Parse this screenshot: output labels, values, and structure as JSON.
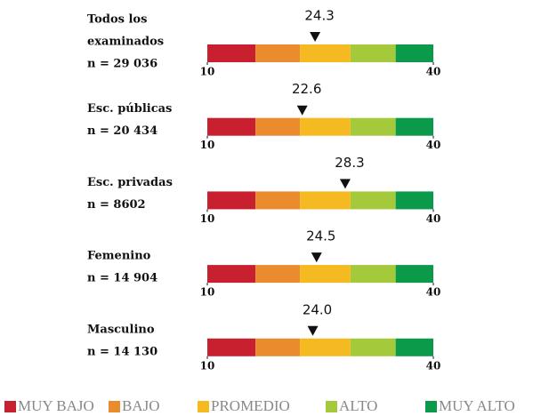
{
  "chart_data": {
    "type": "gauge",
    "categories": [
      [
        "Todos los",
        "examinados",
        "n = 29 036"
      ],
      [
        "Esc. públicas",
        "n = 20 434"
      ],
      [
        "Esc. privadas",
        "n = 8602"
      ],
      [
        "Femenino",
        "n = 14 904"
      ],
      [
        "Masculino",
        "n = 14 130"
      ]
    ],
    "values": [
      24.3,
      22.6,
      28.3,
      24.5,
      24.0
    ],
    "value_labels": [
      "24.3",
      "22.6",
      "28.3",
      "24.5",
      "24.0"
    ],
    "xlim": [
      10,
      40
    ],
    "xticks": [
      10,
      40
    ],
    "band_edges": [
      10,
      16.4,
      22.3,
      29,
      35,
      40
    ],
    "series": [
      {
        "name": "MUY BAJO",
        "color": "#c8202f"
      },
      {
        "name": "BAJO",
        "color": "#ea8c2e"
      },
      {
        "name": "PROMEDIO",
        "color": "#f5b921"
      },
      {
        "name": "ALTO",
        "color": "#a4c93b"
      },
      {
        "name": "MUY ALTO",
        "color": "#0a9a4a"
      }
    ]
  }
}
